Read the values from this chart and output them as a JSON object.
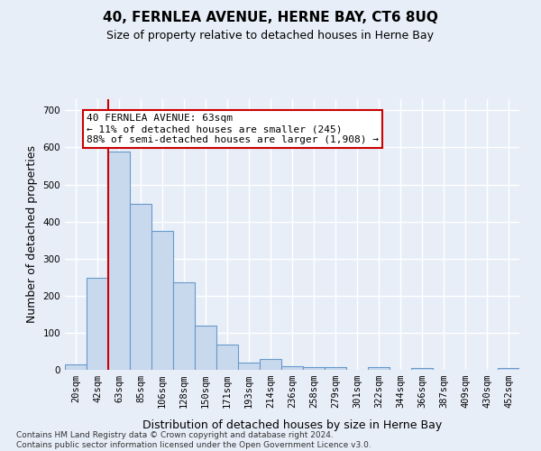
{
  "title": "40, FERNLEA AVENUE, HERNE BAY, CT6 8UQ",
  "subtitle": "Size of property relative to detached houses in Herne Bay",
  "xlabel": "Distribution of detached houses by size in Herne Bay",
  "ylabel": "Number of detached properties",
  "bar_color": "#c9d9ed",
  "bar_edge_color": "#6699cc",
  "categories": [
    "20sqm",
    "42sqm",
    "63sqm",
    "85sqm",
    "106sqm",
    "128sqm",
    "150sqm",
    "171sqm",
    "193sqm",
    "214sqm",
    "236sqm",
    "258sqm",
    "279sqm",
    "301sqm",
    "322sqm",
    "344sqm",
    "366sqm",
    "387sqm",
    "409sqm",
    "430sqm",
    "452sqm"
  ],
  "values": [
    15,
    248,
    590,
    448,
    375,
    237,
    120,
    68,
    20,
    30,
    10,
    8,
    8,
    0,
    8,
    0,
    4,
    0,
    0,
    0,
    4
  ],
  "ylim": [
    0,
    730
  ],
  "yticks": [
    0,
    100,
    200,
    300,
    400,
    500,
    600,
    700
  ],
  "property_line_x": 2,
  "annotation_line1": "40 FERNLEA AVENUE: 63sqm",
  "annotation_line2": "← 11% of detached houses are smaller (245)",
  "annotation_line3": "88% of semi-detached houses are larger (1,908) →",
  "annotation_box_color": "#ffffff",
  "annotation_box_edge": "#cc0000",
  "footer_text": "Contains HM Land Registry data © Crown copyright and database right 2024.\nContains public sector information licensed under the Open Government Licence v3.0.",
  "background_color": "#e8eef8",
  "grid_color": "#ffffff",
  "vline_color": "#cc0000",
  "title_fontsize": 11,
  "subtitle_fontsize": 9,
  "ylabel_fontsize": 9,
  "xlabel_fontsize": 9,
  "tick_fontsize": 7.5,
  "annot_fontsize": 8,
  "footer_fontsize": 6.5
}
